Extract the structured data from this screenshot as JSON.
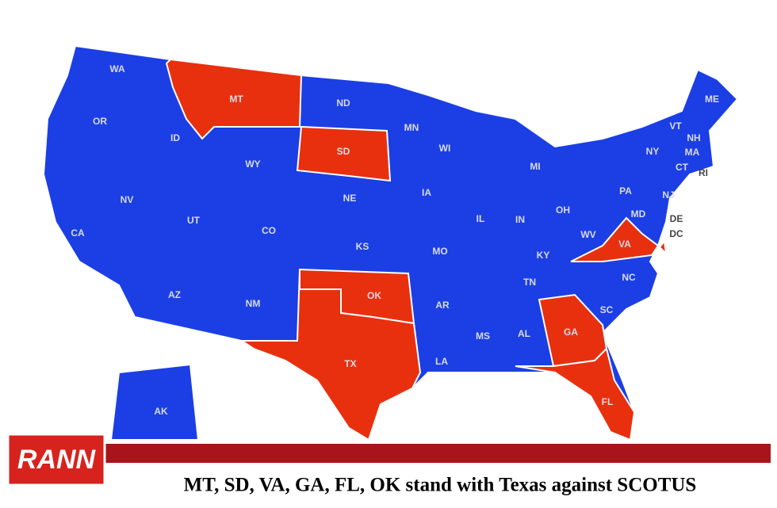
{
  "map": {
    "states": [
      {
        "label": "WA",
        "color": "#1b3fe4"
      },
      {
        "label": "OR",
        "color": "#1b3fe4"
      },
      {
        "label": "CA",
        "color": "#1b3fe4"
      },
      {
        "label": "NV",
        "color": "#1b3fe4"
      },
      {
        "label": "ID",
        "color": "#1b3fe4"
      },
      {
        "label": "MT",
        "color": "#e8300f"
      },
      {
        "label": "WY",
        "color": "#1b3fe4"
      },
      {
        "label": "UT",
        "color": "#1b3fe4"
      },
      {
        "label": "AZ",
        "color": "#1b3fe4"
      },
      {
        "label": "CO",
        "color": "#1b3fe4"
      },
      {
        "label": "NM",
        "color": "#1b3fe4"
      },
      {
        "label": "ND",
        "color": "#1b3fe4"
      },
      {
        "label": "SD",
        "color": "#e8300f"
      },
      {
        "label": "NE",
        "color": "#1b3fe4"
      },
      {
        "label": "KS",
        "color": "#1b3fe4"
      },
      {
        "label": "OK",
        "color": "#e8300f"
      },
      {
        "label": "TX",
        "color": "#e8300f"
      },
      {
        "label": "MN",
        "color": "#1b3fe4"
      },
      {
        "label": "IA",
        "color": "#1b3fe4"
      },
      {
        "label": "MO",
        "color": "#1b3fe4"
      },
      {
        "label": "AR",
        "color": "#1b3fe4"
      },
      {
        "label": "LA",
        "color": "#1b3fe4"
      },
      {
        "label": "WI",
        "color": "#1b3fe4"
      },
      {
        "label": "IL",
        "color": "#1b3fe4"
      },
      {
        "label": "MI",
        "color": "#1b3fe4"
      },
      {
        "label": "IN",
        "color": "#1b3fe4"
      },
      {
        "label": "OH",
        "color": "#1b3fe4"
      },
      {
        "label": "KY",
        "color": "#1b3fe4"
      },
      {
        "label": "TN",
        "color": "#1b3fe4"
      },
      {
        "label": "MS",
        "color": "#1b3fe4"
      },
      {
        "label": "AL",
        "color": "#1b3fe4"
      },
      {
        "label": "GA",
        "color": "#e8300f"
      },
      {
        "label": "FL",
        "color": "#e8300f"
      },
      {
        "label": "SC",
        "color": "#1b3fe4"
      },
      {
        "label": "NC",
        "color": "#1b3fe4"
      },
      {
        "label": "VA",
        "color": "#e8300f"
      },
      {
        "label": "WV",
        "color": "#1b3fe4"
      },
      {
        "label": "PA",
        "color": "#1b3fe4"
      },
      {
        "label": "NY",
        "color": "#1b3fe4"
      },
      {
        "label": "VT",
        "color": "#1b3fe4"
      },
      {
        "label": "NH",
        "color": "#1b3fe4"
      },
      {
        "label": "ME",
        "color": "#1b3fe4"
      },
      {
        "label": "MA",
        "color": "#1b3fe4"
      },
      {
        "label": "CT",
        "color": "#1b3fe4"
      },
      {
        "label": "RI",
        "color": "#1b3fe4"
      },
      {
        "label": "NJ",
        "color": "#1b3fe4"
      },
      {
        "label": "DE",
        "color": "#1b3fe4"
      },
      {
        "label": "MD",
        "color": "#1b3fe4"
      },
      {
        "label": "DC",
        "color": "#e8300f"
      },
      {
        "label": "AK",
        "color": "#1b3fe4"
      }
    ]
  },
  "banner": {
    "logo": "RANN",
    "caption": "MT, SD, VA, GA, FL, OK stand with Texas against SCOTUS"
  }
}
